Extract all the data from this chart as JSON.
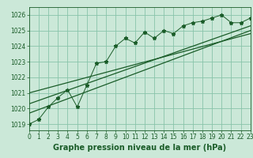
{
  "title": "Graphe pression niveau de la mer (hPa)",
  "bg_color": "#cbe8d8",
  "grid_color": "#89c4aa",
  "line_color": "#1a5c28",
  "x_values": [
    0,
    1,
    2,
    3,
    4,
    5,
    6,
    7,
    8,
    9,
    10,
    11,
    12,
    13,
    14,
    15,
    16,
    17,
    18,
    19,
    20,
    21,
    22,
    23
  ],
  "y_zigzag": [
    1019.0,
    1019.3,
    1020.1,
    1020.7,
    1021.2,
    1020.1,
    1021.5,
    1022.9,
    1023.0,
    1024.0,
    1024.5,
    1024.2,
    1024.9,
    1024.5,
    1025.0,
    1024.8,
    1025.3,
    1025.5,
    1025.6,
    1025.8,
    1026.0,
    1025.5,
    1025.5,
    1025.8
  ],
  "y_trend1_x": [
    0,
    23
  ],
  "y_trend1_y": [
    1019.7,
    1025.0
  ],
  "y_trend2_x": [
    0,
    23
  ],
  "y_trend2_y": [
    1021.0,
    1024.8
  ],
  "y_trend3_x": [
    0,
    23
  ],
  "y_trend3_y": [
    1020.3,
    1025.3
  ],
  "ylim": [
    1018.6,
    1026.5
  ],
  "xlim": [
    0,
    23
  ],
  "yticks": [
    1019,
    1020,
    1021,
    1022,
    1023,
    1024,
    1025,
    1026
  ],
  "xticks": [
    0,
    1,
    2,
    3,
    4,
    5,
    6,
    7,
    8,
    9,
    10,
    11,
    12,
    13,
    14,
    15,
    16,
    17,
    18,
    19,
    20,
    21,
    22,
    23
  ],
  "xlabel_fontsize": 7,
  "tick_fontsize": 5.5
}
